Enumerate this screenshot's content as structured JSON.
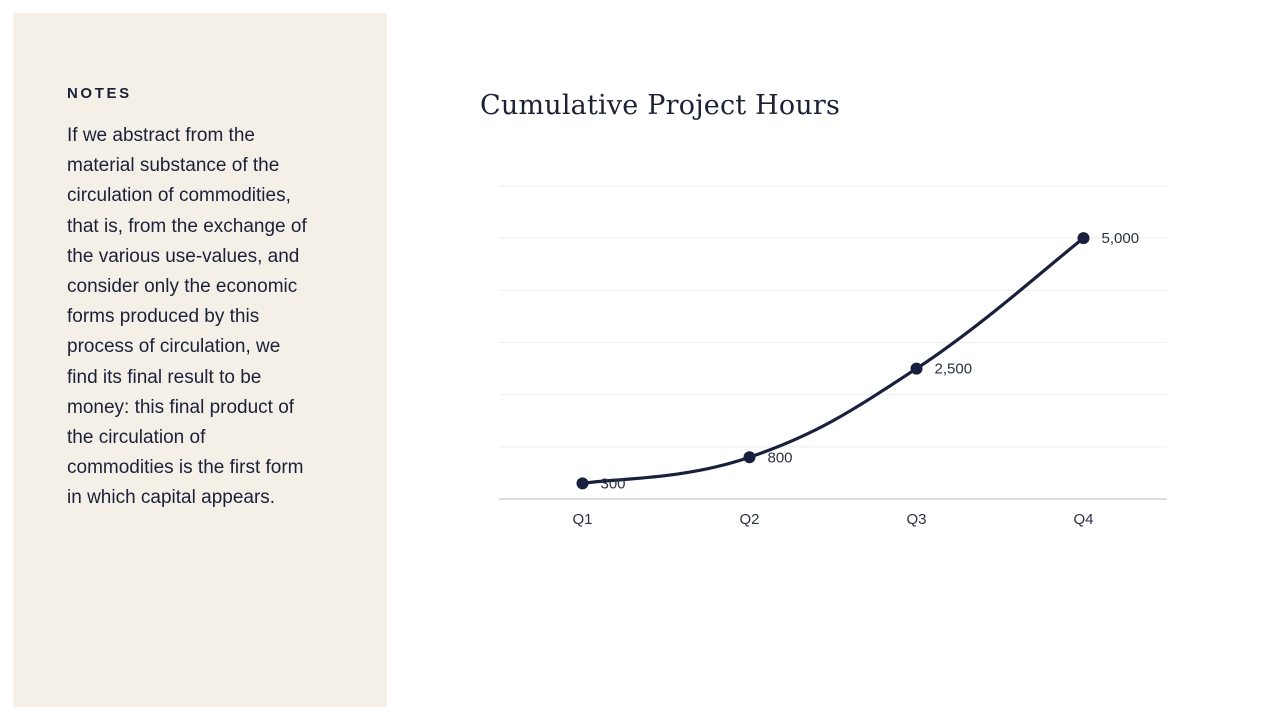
{
  "notes": {
    "heading": "NOTES",
    "body": "If we abstract from the material substance of the circulation of commodities, that is, from the exchange of the various use-values, and consider only the economic forms produced by this process of circulation, we find its final result to be money: this final product of the circulation of commodities is the first form in which capital appears."
  },
  "colors": {
    "panel_background": "#f4f0e8",
    "text": "#1a2138",
    "series": "#17203f",
    "gridline": "#eeeeee",
    "axis": "#bbbbbb"
  },
  "chart_data": {
    "type": "line",
    "title": "Cumulative Project Hours",
    "xlabel": "",
    "ylabel": "",
    "categories": [
      "Q1",
      "Q2",
      "Q3",
      "Q4"
    ],
    "series": [
      {
        "values": [
          300,
          800,
          2500,
          5000
        ]
      }
    ],
    "data_labels": [
      "300",
      "800",
      "2,500",
      "5,000"
    ],
    "ylim": [
      0,
      6000
    ],
    "grid": true,
    "legend": "none",
    "y_tick_labels_shown": false
  }
}
